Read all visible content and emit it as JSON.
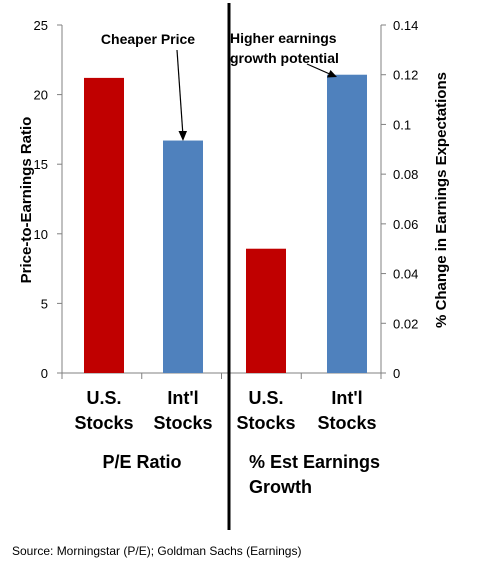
{
  "chart_data": {
    "type": "bar",
    "source": "Source:  Morningstar (P/E); Goldman Sachs (Earnings)",
    "panels": [
      {
        "group_label": [
          "P/E Ratio"
        ],
        "ylabel": "Price-to-Earnings Ratio",
        "ylim": [
          0,
          25
        ],
        "yticks": [
          "0",
          "5",
          "10",
          "15",
          "20",
          "25"
        ],
        "categories": [
          [
            "U.S.",
            "Stocks"
          ],
          [
            "Int'l",
            "Stocks"
          ]
        ],
        "values": [
          21.2,
          16.7
        ],
        "colors": [
          "#c00000",
          "#4f81bd"
        ],
        "annotation": [
          "Cheaper Price"
        ]
      },
      {
        "group_label": [
          "% Est Earnings",
          "Growth"
        ],
        "ylabel": "% Change in Earnings Expectations",
        "ylim": [
          0,
          0.14
        ],
        "yticks": [
          "0",
          "0.02",
          "0.04",
          "0.06",
          "0.08",
          "0.1",
          "0.12",
          "0.14"
        ],
        "categories": [
          [
            "U.S.",
            "Stocks"
          ],
          [
            "Int'l",
            "Stocks"
          ]
        ],
        "values": [
          0.05,
          0.12
        ],
        "colors": [
          "#c00000",
          "#4f81bd"
        ],
        "annotation": [
          "Higher earnings",
          "growth potential"
        ]
      }
    ]
  }
}
